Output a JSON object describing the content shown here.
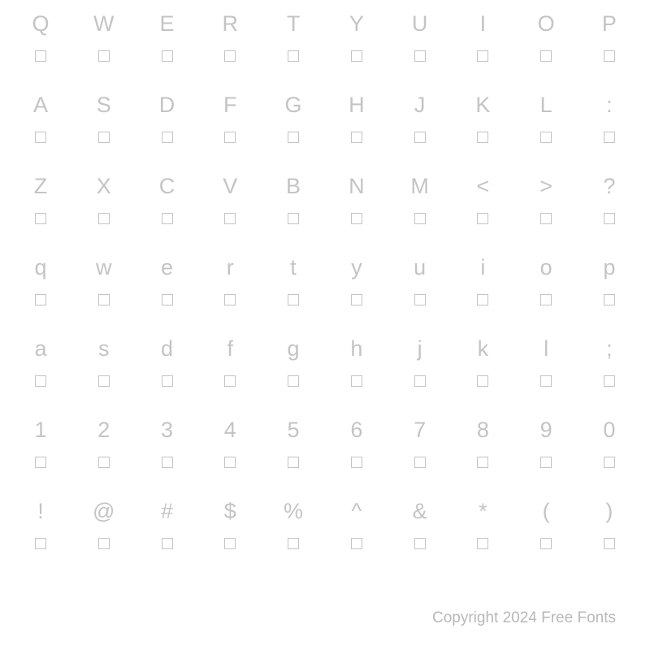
{
  "rows": [
    [
      "Q",
      "W",
      "E",
      "R",
      "T",
      "Y",
      "U",
      "I",
      "O",
      "P"
    ],
    [
      "A",
      "S",
      "D",
      "F",
      "G",
      "H",
      "J",
      "K",
      "L",
      ":"
    ],
    [
      "Z",
      "X",
      "C",
      "V",
      "B",
      "N",
      "M",
      "<",
      ">",
      "?"
    ],
    [
      "q",
      "w",
      "e",
      "r",
      "t",
      "y",
      "u",
      "i",
      "o",
      "p"
    ],
    [
      "a",
      "s",
      "d",
      "f",
      "g",
      "h",
      "j",
      "k",
      "l",
      ";"
    ],
    [
      "1",
      "2",
      "3",
      "4",
      "5",
      "6",
      "7",
      "8",
      "9",
      "0"
    ],
    [
      "!",
      "@",
      "#",
      "$",
      "%",
      "^",
      "&",
      "*",
      "(",
      ")"
    ]
  ],
  "copyright": "Copyright 2024 Free Fonts",
  "colors": {
    "text": "#c4c4c4",
    "box_border": "#c4c4c4",
    "background": "#ffffff",
    "copyright": "#b8b8b8"
  },
  "typography": {
    "char_fontsize": 27,
    "copyright_fontsize": 19,
    "font_family": "Lucida Sans"
  },
  "layout": {
    "columns": 10,
    "box_size": 14
  }
}
